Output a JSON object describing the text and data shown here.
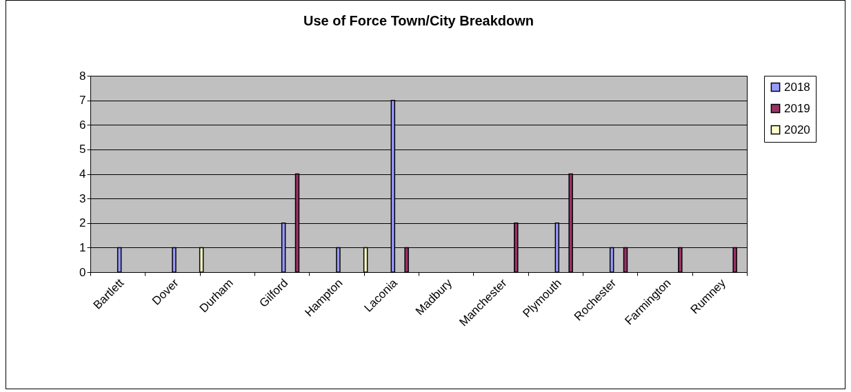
{
  "chart_data": {
    "type": "bar",
    "title": "Use of Force Town/City Breakdown",
    "categories": [
      "Bartlett",
      "Dover",
      "Durham",
      "Gilford",
      "Hampton",
      "Laconia",
      "Madbury",
      "Manchester",
      "Plymouth",
      "Rochester",
      "Farmington",
      "Rumney"
    ],
    "series": [
      {
        "name": "2018",
        "color": "#9999ff",
        "values": [
          1,
          1,
          null,
          2,
          1,
          7,
          null,
          null,
          2,
          1,
          null,
          null
        ]
      },
      {
        "name": "2019",
        "color": "#993366",
        "values": [
          null,
          null,
          null,
          4,
          null,
          1,
          null,
          2,
          4,
          1,
          1,
          1
        ]
      },
      {
        "name": "2020",
        "color": "#ffffcc",
        "values": [
          null,
          1,
          null,
          null,
          1,
          null,
          null,
          null,
          null,
          null,
          null,
          null
        ]
      }
    ],
    "ylim": [
      0,
      8
    ],
    "yticks": [
      0,
      1,
      2,
      3,
      4,
      5,
      6,
      7,
      8
    ],
    "grid": "y",
    "legend": "right"
  }
}
